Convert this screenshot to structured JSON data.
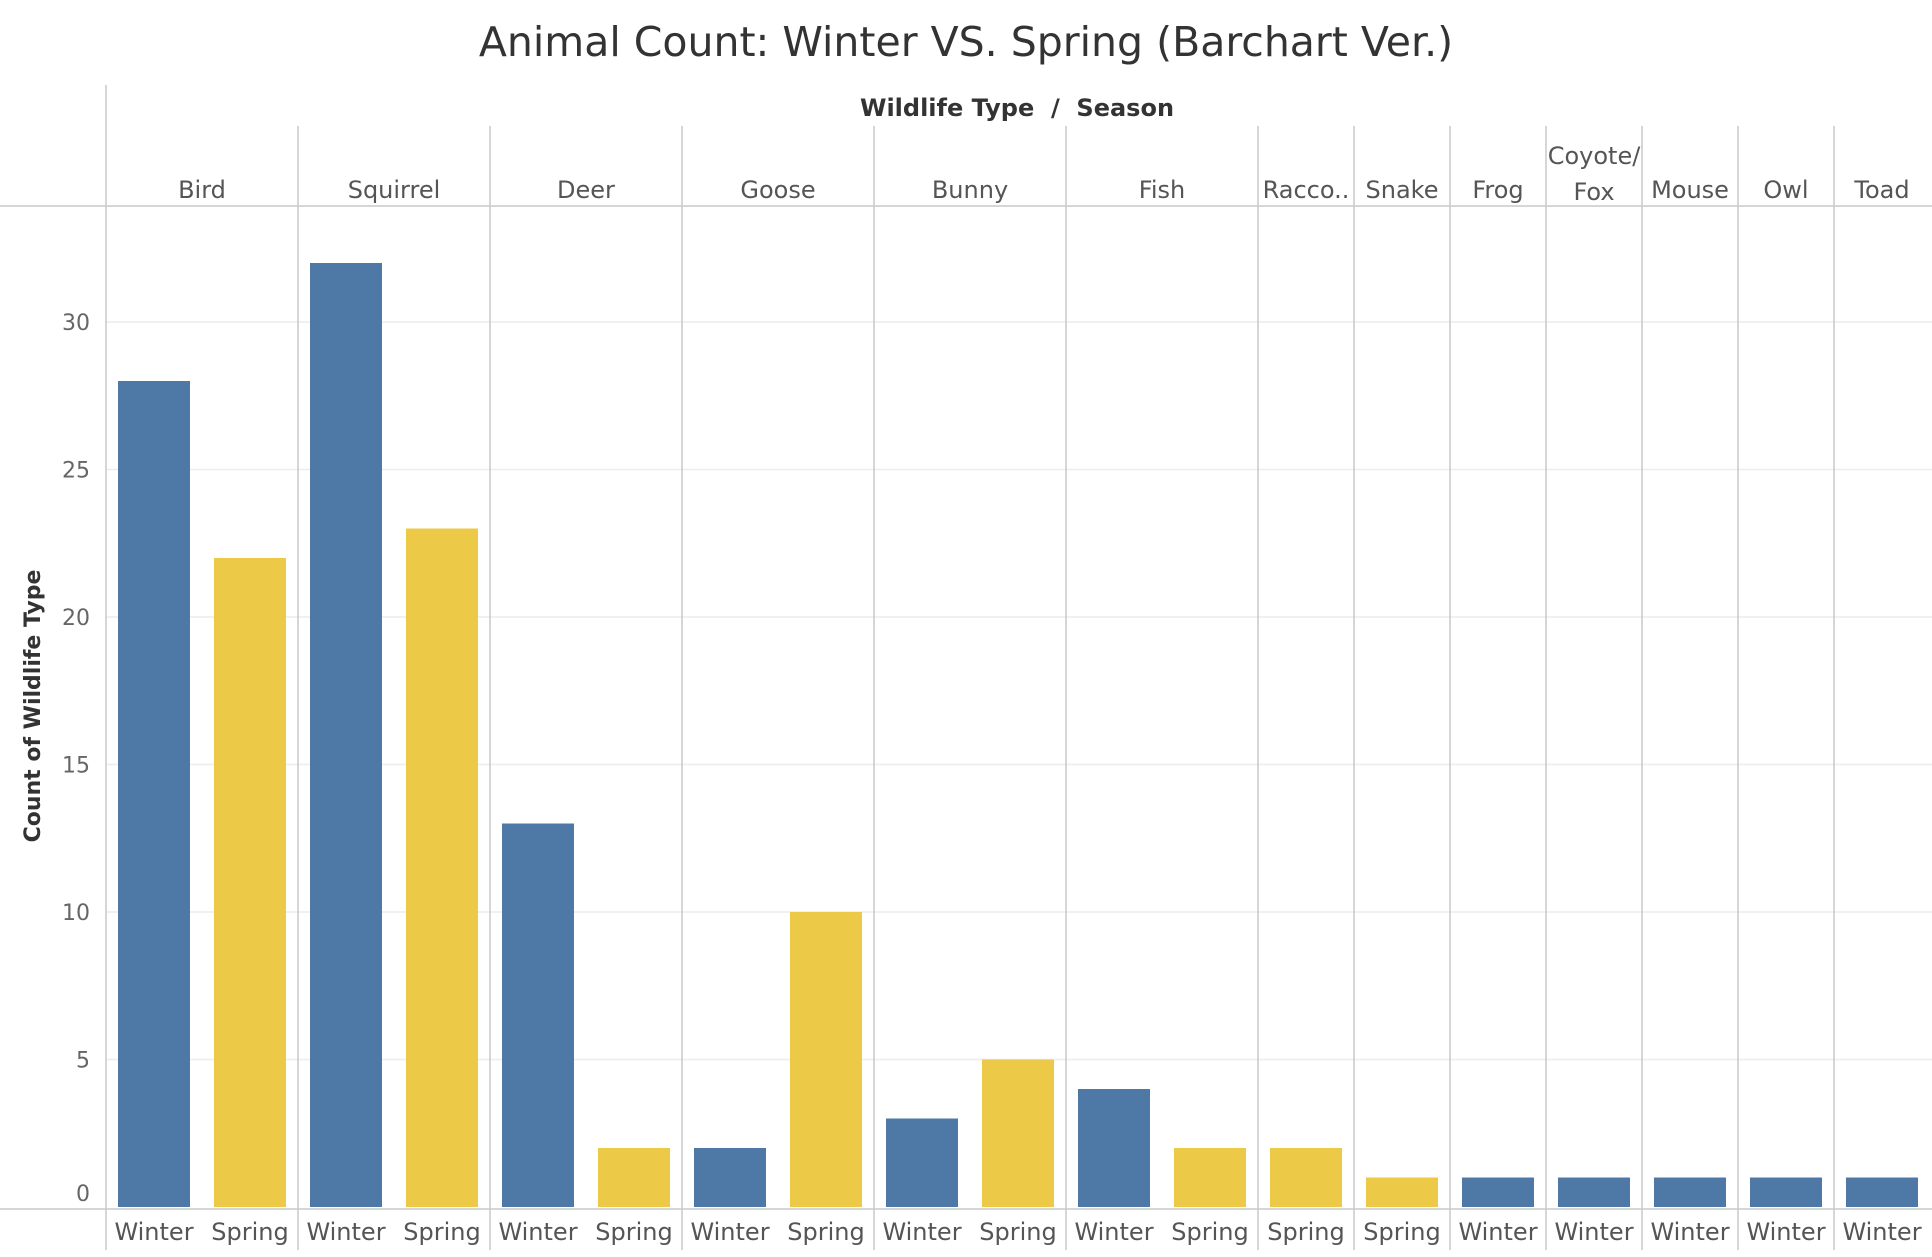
{
  "chart_data": {
    "type": "bar",
    "title": "Animal Count: Winter VS. Spring (Barchart Ver.)",
    "header": "Wildlife Type  /  Season",
    "ylabel": "Count of Wildlife Type",
    "ylim": [
      0,
      34
    ],
    "yticks": [
      0,
      5,
      10,
      15,
      20,
      25,
      30
    ],
    "grid": true,
    "colors": {
      "Winter": "#4E79A7",
      "Spring": "#EDC948"
    },
    "groups": [
      {
        "label": [
          "Bird"
        ],
        "bars": [
          {
            "season": "Winter",
            "value": 28
          },
          {
            "season": "Spring",
            "value": 22
          }
        ]
      },
      {
        "label": [
          "Squirrel"
        ],
        "bars": [
          {
            "season": "Winter",
            "value": 32
          },
          {
            "season": "Spring",
            "value": 23
          }
        ]
      },
      {
        "label": [
          "Deer"
        ],
        "bars": [
          {
            "season": "Winter",
            "value": 13
          },
          {
            "season": "Spring",
            "value": 2
          }
        ]
      },
      {
        "label": [
          "Goose"
        ],
        "bars": [
          {
            "season": "Winter",
            "value": 2
          },
          {
            "season": "Spring",
            "value": 10
          }
        ]
      },
      {
        "label": [
          "Bunny"
        ],
        "bars": [
          {
            "season": "Winter",
            "value": 3
          },
          {
            "season": "Spring",
            "value": 5
          }
        ]
      },
      {
        "label": [
          "Fish"
        ],
        "bars": [
          {
            "season": "Winter",
            "value": 4
          },
          {
            "season": "Spring",
            "value": 2
          }
        ]
      },
      {
        "label": [
          "Racco.."
        ],
        "bars": [
          {
            "season": "Spring",
            "value": 2
          }
        ]
      },
      {
        "label": [
          "Snake"
        ],
        "bars": [
          {
            "season": "Spring",
            "value": 1
          }
        ]
      },
      {
        "label": [
          "Frog"
        ],
        "bars": [
          {
            "season": "Winter",
            "value": 1
          }
        ]
      },
      {
        "label": [
          "Coyote/",
          "Fox"
        ],
        "bars": [
          {
            "season": "Winter",
            "value": 1
          }
        ]
      },
      {
        "label": [
          "Mouse"
        ],
        "bars": [
          {
            "season": "Winter",
            "value": 1
          }
        ]
      },
      {
        "label": [
          "Owl"
        ],
        "bars": [
          {
            "season": "Winter",
            "value": 1
          }
        ]
      },
      {
        "label": [
          "Toad"
        ],
        "bars": [
          {
            "season": "Winter",
            "value": 1
          }
        ]
      }
    ]
  }
}
